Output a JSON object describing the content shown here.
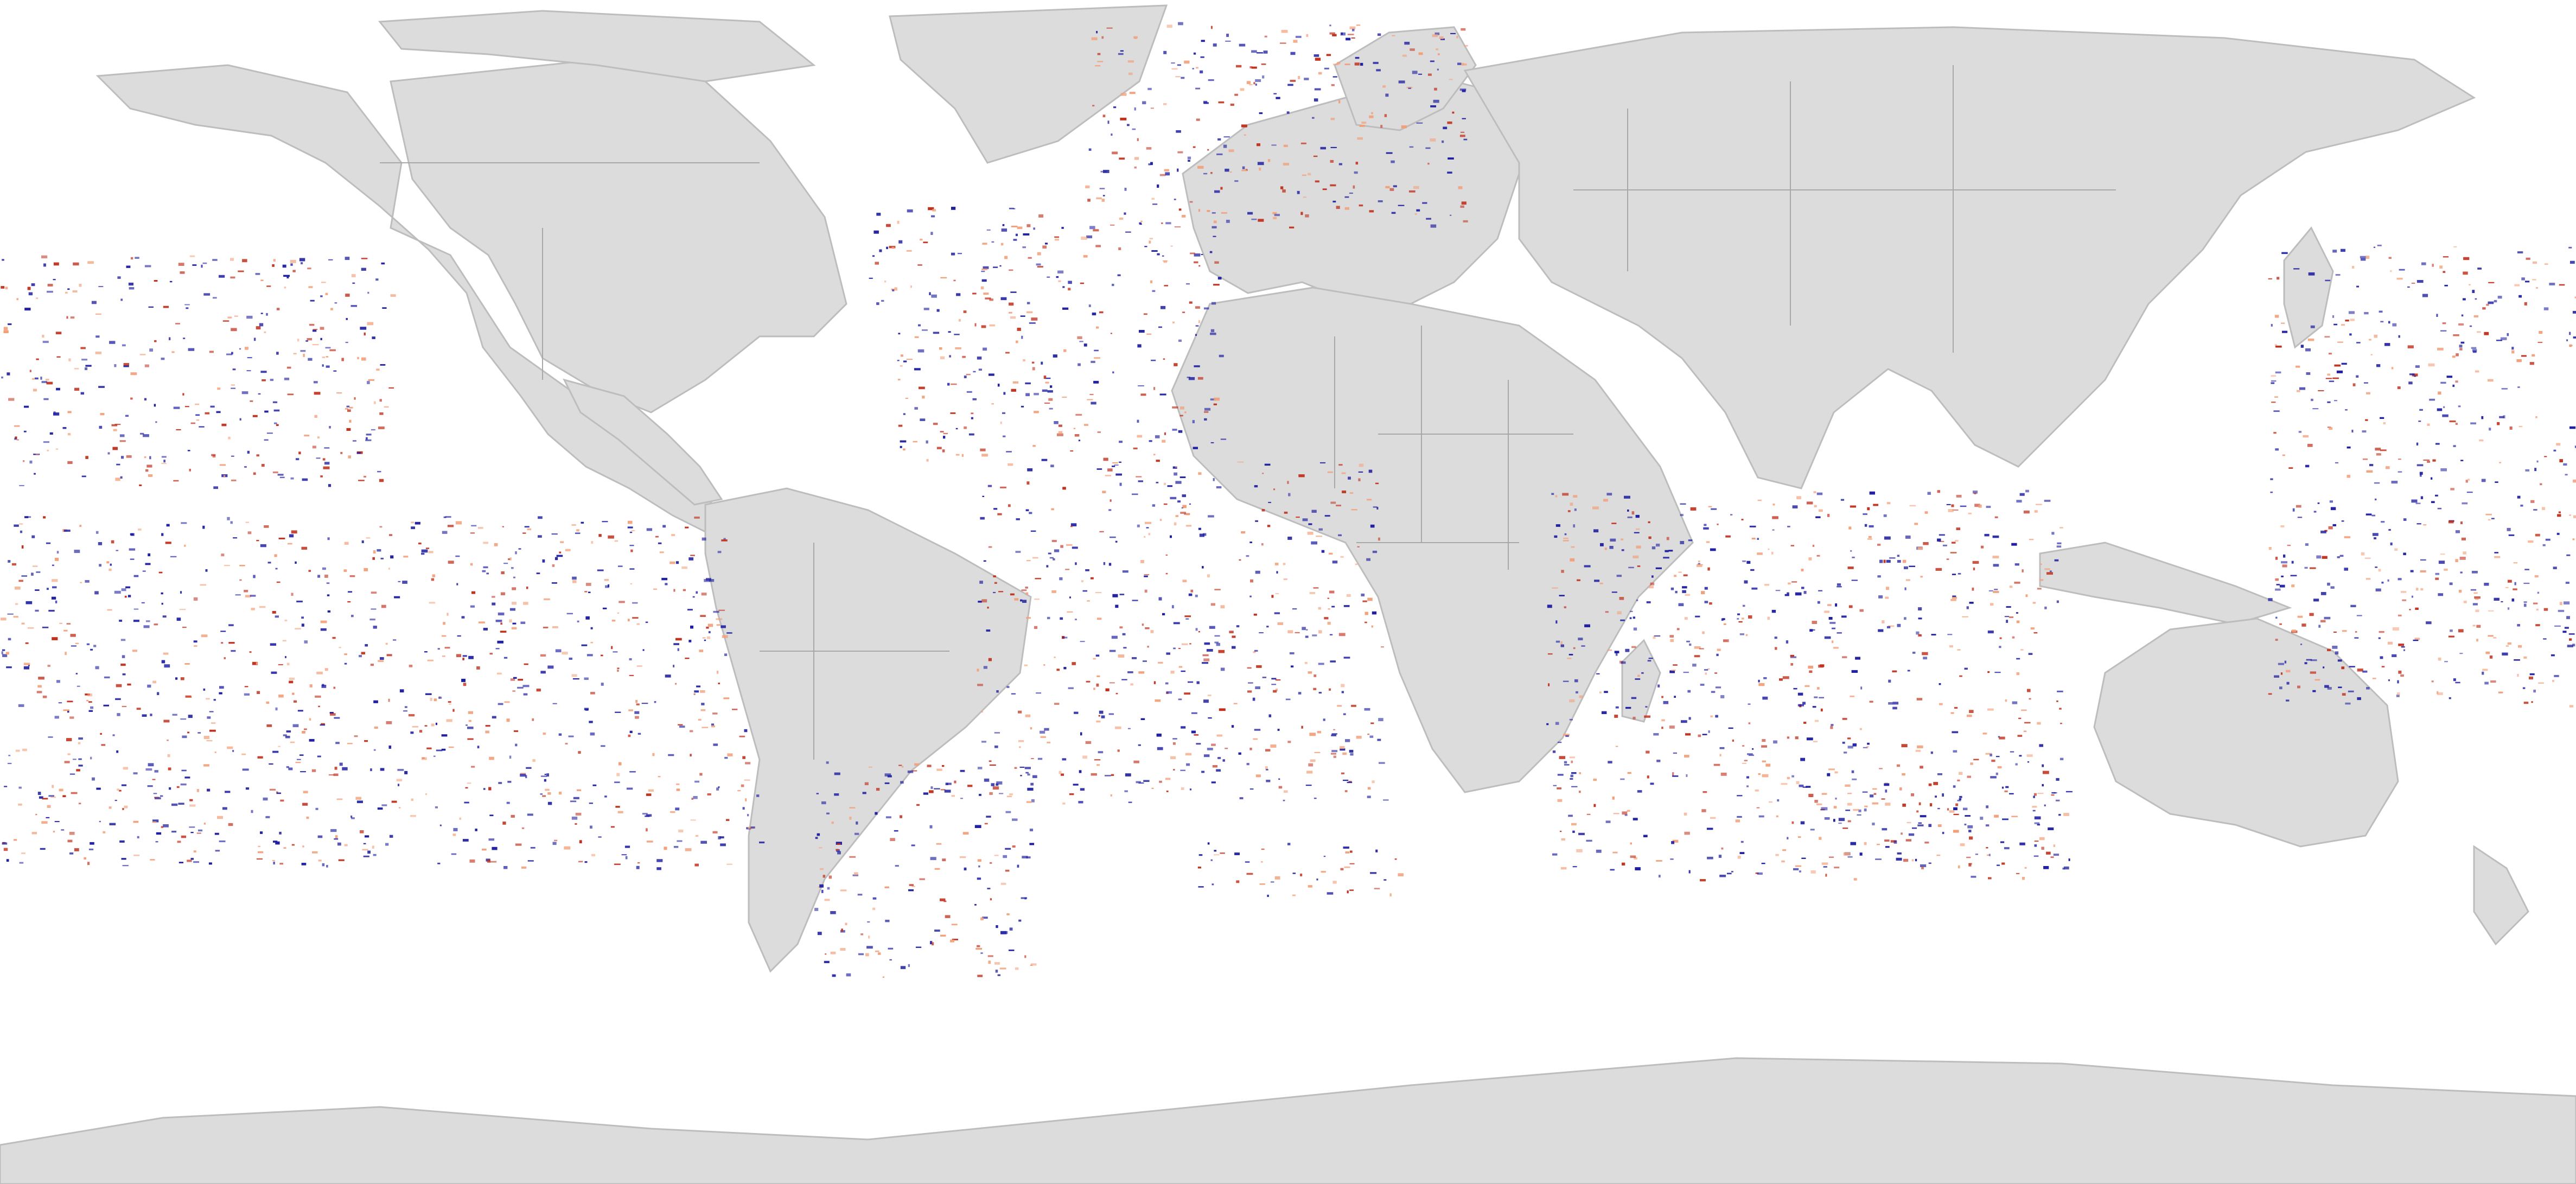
{
  "map": {
    "projection": "equirectangular",
    "colors": {
      "ocean": "#ffffff",
      "land": "#dcdcdc",
      "borders": "#a8a8a8",
      "coastline": "#bdbdbd",
      "positive": "#c0301c",
      "negative": "#1e1ea0",
      "neutral": "#f2a07a"
    },
    "layers": [
      "ocean",
      "land",
      "country-borders",
      "observation-points"
    ],
    "legend": null,
    "title": null
  }
}
